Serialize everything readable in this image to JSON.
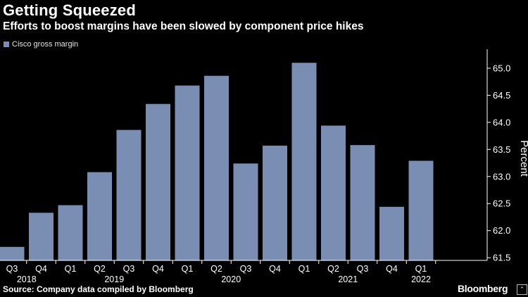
{
  "header": {
    "title": "Getting Squeezed",
    "subtitle": "Efforts to boost margins have been slowed by component price hikes"
  },
  "footer": {
    "source": "Source: Company data compiled by Bloomberg",
    "brand": "Bloomberg",
    "brand_icon": "bloomberg-logo-icon"
  },
  "colors": {
    "bar": "#7a8db3",
    "background": "#000000",
    "axis": "#ffffff"
  },
  "chart_data": {
    "type": "bar",
    "title": "Getting Squeezed",
    "subtitle": "Efforts to boost margins have been slowed by component price hikes",
    "categories": [
      "Q3",
      "Q4",
      "Q1",
      "Q2",
      "Q3",
      "Q4",
      "Q1",
      "Q2",
      "Q3",
      "Q4",
      "Q1",
      "Q2",
      "Q3",
      "Q4",
      "Q1"
    ],
    "year_labels": [
      {
        "label": "2018",
        "category_index": 0.5
      },
      {
        "label": "2019",
        "category_index": 3.5
      },
      {
        "label": "2020",
        "category_index": 7.5
      },
      {
        "label": "2021",
        "category_index": 11.5
      },
      {
        "label": "2022",
        "category_index": 14
      }
    ],
    "series": [
      {
        "name": "Cisco gross margin",
        "values": [
          61.7,
          62.33,
          62.47,
          63.08,
          63.86,
          64.34,
          64.68,
          64.86,
          63.24,
          63.57,
          65.1,
          63.94,
          63.58,
          62.44,
          63.29
        ]
      }
    ],
    "ylabel": "Percent",
    "ylim": [
      61.45,
      65.35
    ],
    "yticks": [
      61.5,
      62.0,
      62.5,
      63.0,
      63.5,
      64.0,
      64.5,
      65.0
    ],
    "y_axis_position": "right",
    "legend": "top-left",
    "grid": false
  }
}
